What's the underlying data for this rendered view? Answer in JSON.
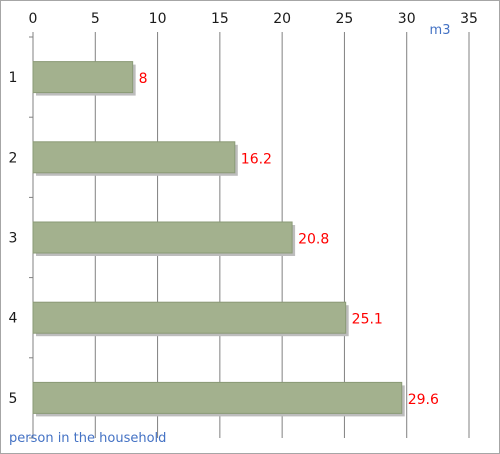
{
  "chart_data": {
    "type": "bar",
    "orientation": "horizontal",
    "categories": [
      "1",
      "2",
      "3",
      "4",
      "5"
    ],
    "values": [
      8,
      16.2,
      20.8,
      25.1,
      29.6
    ],
    "data_labels": [
      "8",
      "16.2",
      "20.8",
      "25.1",
      "29.6"
    ],
    "title": "",
    "xlabel": "m3",
    "ylabel": "person in the household",
    "xlim": [
      0,
      35
    ],
    "xticks": [
      0,
      5,
      10,
      15,
      20,
      25,
      30,
      35
    ],
    "x_axis_position": "top",
    "grid": true,
    "legend": "none",
    "colors": {
      "bar_fill": "#a3b18e",
      "bar_stroke": "#8a9a76",
      "bar_shadow": "#bdbdbd",
      "data_label": "#ff0000",
      "axis_label": "#4472c4",
      "gridline": "#808080",
      "axis_line": "#808080"
    }
  }
}
